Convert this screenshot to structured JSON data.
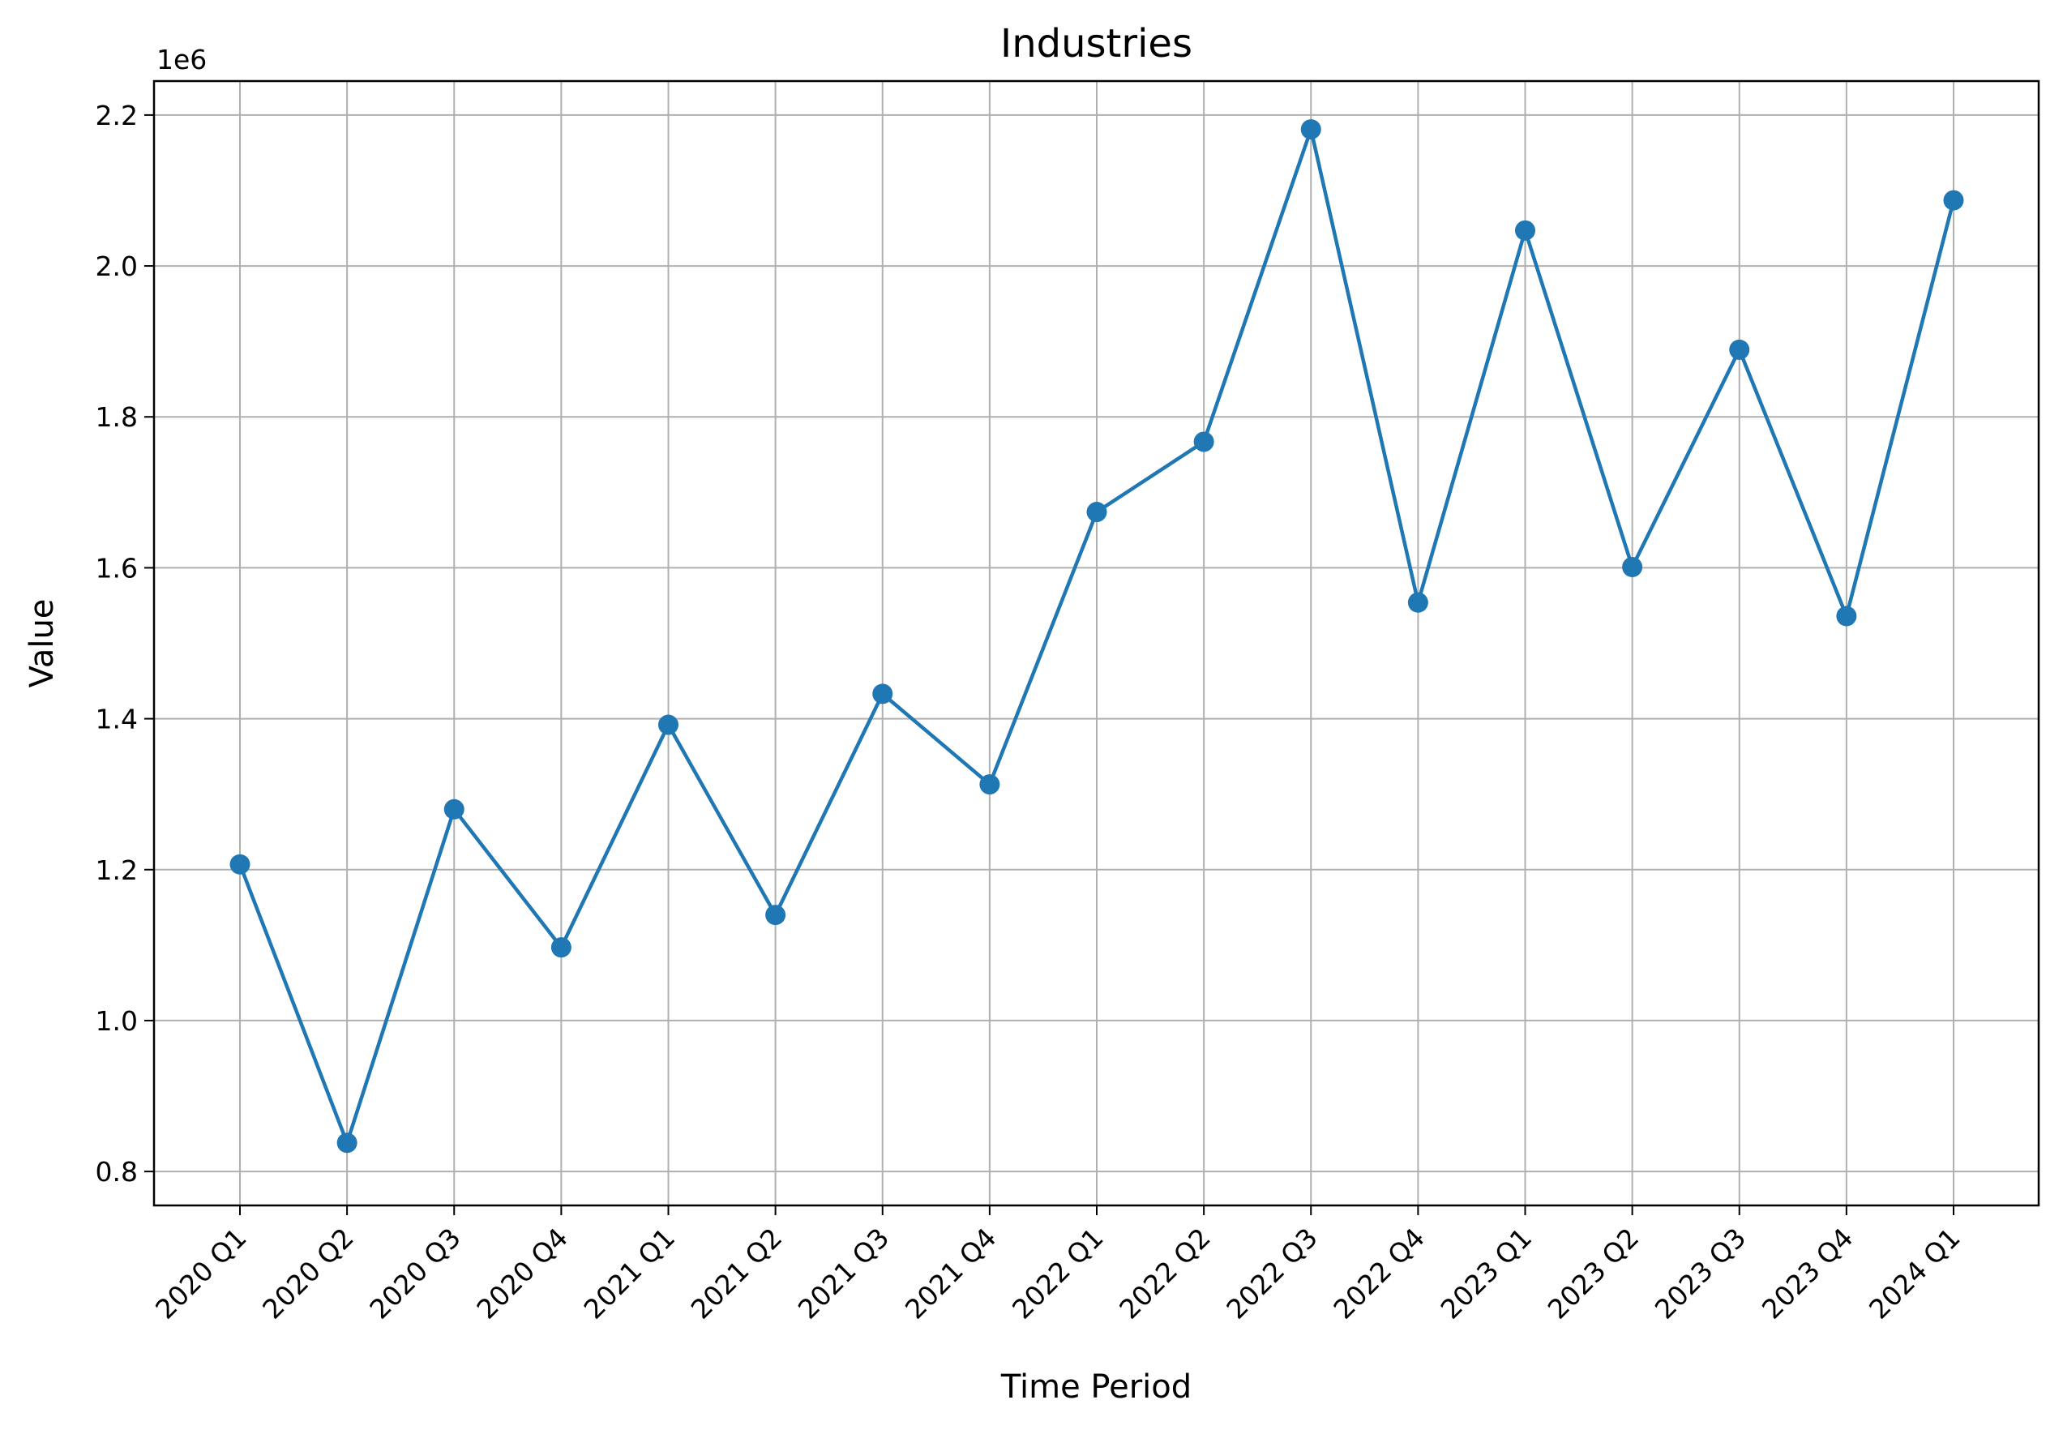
{
  "chart_data": {
    "type": "line",
    "title": "Industries",
    "xlabel": "Time Period",
    "ylabel": "Value",
    "y_offset_label": "1e6",
    "categories": [
      "2020 Q1",
      "2020 Q2",
      "2020 Q3",
      "2020 Q4",
      "2021 Q1",
      "2021 Q2",
      "2021 Q3",
      "2021 Q4",
      "2022 Q1",
      "2022 Q2",
      "2022 Q3",
      "2022 Q4",
      "2023 Q1",
      "2023 Q2",
      "2023 Q3",
      "2023 Q4",
      "2024 Q1"
    ],
    "values": [
      1207000,
      838000,
      1280000,
      1097000,
      1392000,
      1140000,
      1433000,
      1313000,
      1674000,
      1767000,
      2181000,
      1554000,
      2047000,
      1601000,
      1889000,
      1536000,
      2087000
    ],
    "y_ticks": [
      0.8,
      1.0,
      1.2,
      1.4,
      1.6,
      1.8,
      2.0,
      2.2
    ],
    "ylim": [
      0.755,
      2.245
    ],
    "y_scale": 1000000,
    "grid": true,
    "line_color": "#1f77b4",
    "grid_color": "#b0b0b0"
  }
}
